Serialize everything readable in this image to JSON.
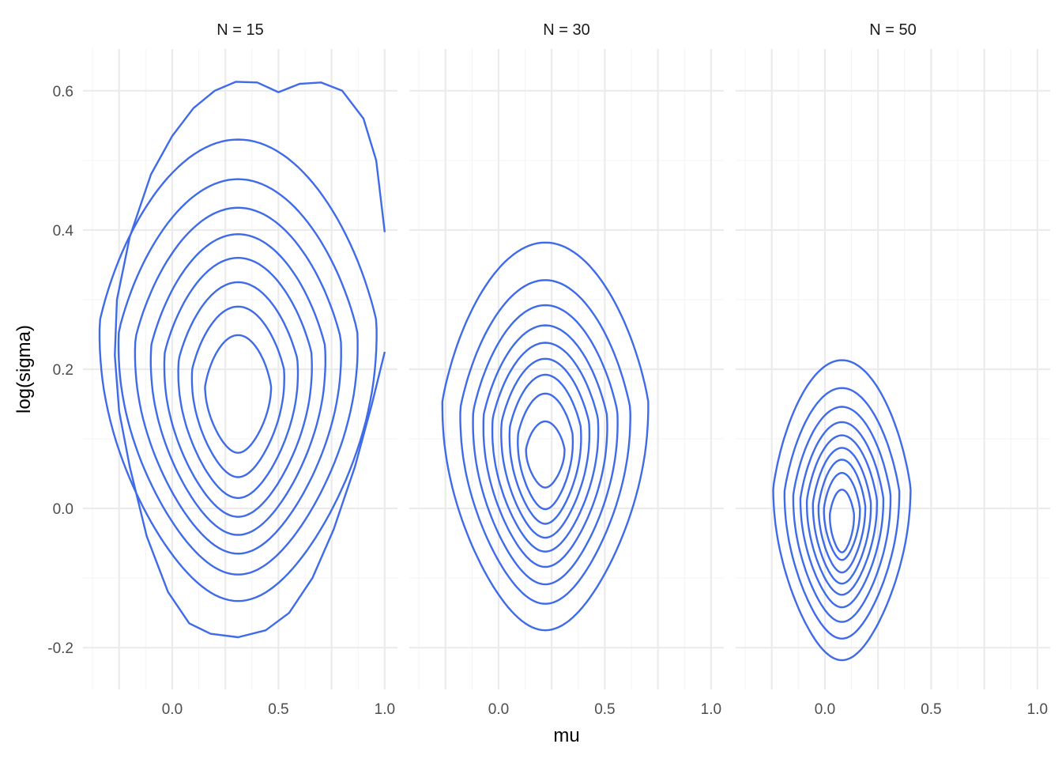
{
  "chart_data": {
    "type": "contour",
    "xlabel": "mu",
    "ylabel": "log(sigma)",
    "xlim": [
      -0.42,
      1.06
    ],
    "ylim": [
      -0.26,
      0.66
    ],
    "x_ticks": [
      0.0,
      0.5,
      1.0
    ],
    "x_tick_labels": [
      "0.0",
      "0.5",
      "1.0"
    ],
    "y_ticks": [
      -0.2,
      0.0,
      0.2,
      0.4,
      0.6
    ],
    "y_tick_labels": [
      "-0.2",
      "0.0",
      "0.2",
      "0.4",
      "0.6"
    ],
    "line_color": "#3f6be9",
    "grid": true,
    "panels": [
      {
        "label": "N = 15",
        "contours": [
          {
            "closed": false,
            "points": [
              [
                1.0,
                0.397
              ],
              [
                0.96,
                0.5
              ],
              [
                0.9,
                0.56
              ],
              [
                0.8,
                0.6
              ],
              [
                0.7,
                0.612
              ],
              [
                0.6,
                0.61
              ],
              [
                0.5,
                0.598
              ],
              [
                0.4,
                0.612
              ],
              [
                0.3,
                0.613
              ],
              [
                0.2,
                0.6
              ],
              [
                0.1,
                0.575
              ],
              [
                0.0,
                0.535
              ],
              [
                -0.1,
                0.48
              ],
              [
                -0.2,
                0.39
              ],
              [
                -0.26,
                0.3
              ],
              [
                -0.27,
                0.22
              ],
              [
                -0.25,
                0.14
              ],
              [
                -0.2,
                0.06
              ],
              [
                -0.12,
                -0.04
              ],
              [
                -0.02,
                -0.12
              ],
              [
                0.08,
                -0.165
              ],
              [
                0.18,
                -0.18
              ],
              [
                0.31,
                -0.185
              ],
              [
                0.44,
                -0.175
              ],
              [
                0.55,
                -0.15
              ],
              [
                0.66,
                -0.1
              ],
              [
                0.76,
                -0.03
              ],
              [
                0.86,
                0.06
              ],
              [
                0.94,
                0.15
              ],
              [
                1.0,
                0.225
              ]
            ]
          },
          {
            "closed": true,
            "cx": 0.31,
            "top": 0.53,
            "bottom": -0.133,
            "hw": 0.595,
            "peak": 0.27
          },
          {
            "closed": true,
            "cx": 0.31,
            "top": 0.473,
            "bottom": -0.095,
            "hw": 0.515,
            "peak": 0.255
          },
          {
            "closed": true,
            "cx": 0.31,
            "top": 0.432,
            "bottom": -0.065,
            "hw": 0.445,
            "peak": 0.245
          },
          {
            "closed": true,
            "cx": 0.31,
            "top": 0.394,
            "bottom": -0.038,
            "hw": 0.378,
            "peak": 0.235
          },
          {
            "closed": true,
            "cx": 0.31,
            "top": 0.36,
            "bottom": -0.012,
            "hw": 0.32,
            "peak": 0.225
          },
          {
            "closed": true,
            "cx": 0.31,
            "top": 0.325,
            "bottom": 0.015,
            "hw": 0.26,
            "peak": 0.215
          },
          {
            "closed": true,
            "cx": 0.31,
            "top": 0.29,
            "bottom": 0.045,
            "hw": 0.2,
            "peak": 0.2
          },
          {
            "closed": true,
            "cx": 0.31,
            "top": 0.249,
            "bottom": 0.08,
            "hw": 0.14,
            "peak": 0.175
          }
        ]
      },
      {
        "label": "N = 30",
        "contours": [
          {
            "closed": true,
            "cx": 0.22,
            "top": 0.382,
            "bottom": -0.175,
            "hw": 0.44,
            "peak": 0.155
          },
          {
            "closed": true,
            "cx": 0.22,
            "top": 0.328,
            "bottom": -0.137,
            "hw": 0.365,
            "peak": 0.145
          },
          {
            "closed": true,
            "cx": 0.22,
            "top": 0.292,
            "bottom": -0.109,
            "hw": 0.312,
            "peak": 0.14
          },
          {
            "closed": true,
            "cx": 0.22,
            "top": 0.263,
            "bottom": -0.084,
            "hw": 0.268,
            "peak": 0.135
          },
          {
            "closed": true,
            "cx": 0.22,
            "top": 0.238,
            "bottom": -0.062,
            "hw": 0.23,
            "peak": 0.13
          },
          {
            "closed": true,
            "cx": 0.22,
            "top": 0.215,
            "bottom": -0.042,
            "hw": 0.192,
            "peak": 0.125
          },
          {
            "closed": true,
            "cx": 0.22,
            "top": 0.192,
            "bottom": -0.022,
            "hw": 0.156,
            "peak": 0.118
          },
          {
            "closed": true,
            "cx": 0.22,
            "top": 0.165,
            "bottom": -0.001,
            "hw": 0.12,
            "peak": 0.108
          },
          {
            "closed": true,
            "cx": 0.22,
            "top": 0.125,
            "bottom": 0.03,
            "hw": 0.082,
            "peak": 0.085
          }
        ]
      },
      {
        "label": "N = 50",
        "contours": [
          {
            "closed": true,
            "cx": 0.08,
            "top": 0.213,
            "bottom": -0.218,
            "hw": 0.292,
            "peak": 0.03
          },
          {
            "closed": true,
            "cx": 0.08,
            "top": 0.173,
            "bottom": -0.187,
            "hw": 0.245,
            "peak": 0.025
          },
          {
            "closed": true,
            "cx": 0.08,
            "top": 0.146,
            "bottom": -0.163,
            "hw": 0.208,
            "peak": 0.02
          },
          {
            "closed": true,
            "cx": 0.08,
            "top": 0.124,
            "bottom": -0.142,
            "hw": 0.177,
            "peak": 0.015
          },
          {
            "closed": true,
            "cx": 0.08,
            "top": 0.105,
            "bottom": -0.124,
            "hw": 0.15,
            "peak": 0.012
          },
          {
            "closed": true,
            "cx": 0.08,
            "top": 0.087,
            "bottom": -0.108,
            "hw": 0.124,
            "peak": 0.008
          },
          {
            "closed": true,
            "cx": 0.08,
            "top": 0.07,
            "bottom": -0.092,
            "hw": 0.1,
            "peak": 0.004
          },
          {
            "closed": true,
            "cx": 0.08,
            "top": 0.051,
            "bottom": -0.074,
            "hw": 0.077,
            "peak": 0.0
          },
          {
            "closed": true,
            "cx": 0.08,
            "top": 0.027,
            "bottom": -0.063,
            "hw": 0.052,
            "peak": -0.008
          }
        ]
      }
    ]
  }
}
